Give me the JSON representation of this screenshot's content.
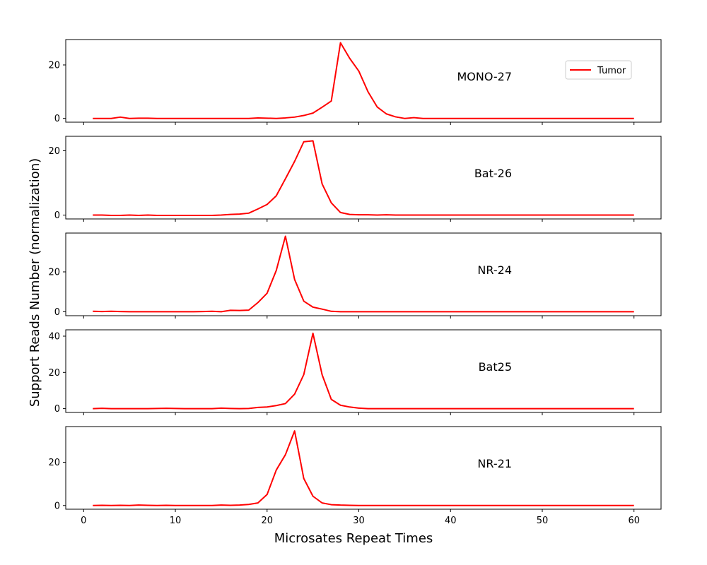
{
  "chart_data": {
    "type": "line",
    "xlabel": "Microsates Repeat Times",
    "ylabel": "Support Reads Number (normalization)",
    "xlim": [
      -1.95,
      62.95
    ],
    "xticks": [
      0,
      10,
      20,
      30,
      40,
      50,
      60
    ],
    "legend": {
      "placement": "top-right",
      "entries": [
        "Tumor"
      ]
    },
    "series_color": "#ff0000",
    "x": [
      1,
      2,
      3,
      4,
      5,
      6,
      7,
      8,
      9,
      10,
      11,
      12,
      13,
      14,
      15,
      16,
      17,
      18,
      19,
      20,
      21,
      22,
      23,
      24,
      25,
      26,
      27,
      28,
      29,
      30,
      31,
      32,
      33,
      34,
      35,
      36,
      37,
      38,
      39,
      40,
      41,
      42,
      43,
      44,
      45,
      46,
      47,
      48,
      49,
      50,
      51,
      52,
      53,
      54,
      55,
      56,
      57,
      58,
      59,
      60
    ],
    "panels": [
      {
        "label": "MONO-27",
        "ylim": [
          -1.4,
          29.5
        ],
        "yticks": [
          0,
          20
        ],
        "series": [
          {
            "name": "Tumor",
            "values": [
              0,
              0,
              0,
              0.5,
              0,
              0.1,
              0.1,
              0,
              0,
              0,
              0,
              0,
              0,
              0,
              0,
              0,
              0,
              0,
              0.2,
              0.1,
              0,
              0.2,
              0.5,
              1.1,
              2,
              4.2,
              6.5,
              28.3,
              22.5,
              17.7,
              10,
              4.3,
              1.7,
              0.6,
              0,
              0.3,
              0,
              0,
              0,
              0,
              0,
              0,
              0,
              0,
              0,
              0,
              0,
              0,
              0,
              0,
              0,
              0,
              0,
              0,
              0,
              0,
              0,
              0,
              0,
              0
            ]
          }
        ]
      },
      {
        "label": "Bat-26",
        "ylim": [
          -1.2,
          24.5
        ],
        "yticks": [
          0,
          20
        ],
        "series": [
          {
            "name": "Tumor",
            "values": [
              0,
              0,
              -0.1,
              -0.1,
              0,
              -0.1,
              0,
              -0.1,
              -0.1,
              -0.1,
              -0.1,
              -0.1,
              -0.1,
              -0.1,
              0,
              0.2,
              0.3,
              0.6,
              1.9,
              3.3,
              6,
              11.3,
              16.7,
              22.8,
              23.1,
              9.7,
              3.8,
              0.8,
              0.2,
              0.1,
              0.1,
              0,
              0.1,
              0,
              0,
              0,
              0,
              0,
              0,
              0,
              0,
              0,
              0,
              0,
              0,
              0,
              0,
              0,
              0,
              0,
              0,
              0,
              0,
              0,
              0,
              0,
              0,
              0,
              0,
              0
            ]
          }
        ]
      },
      {
        "label": "NR-24",
        "ylim": [
          -2,
          39.5
        ],
        "yticks": [
          0,
          20
        ],
        "series": [
          {
            "name": "Tumor",
            "values": [
              0.2,
              0.1,
              0.2,
              0.1,
              0,
              0,
              0,
              0,
              0,
              0,
              0,
              0,
              0.1,
              0.2,
              0,
              0.7,
              0.6,
              0.8,
              4.6,
              9.3,
              20.7,
              37.9,
              16.2,
              5.3,
              2.3,
              1.3,
              0.2,
              0,
              0,
              0,
              0,
              0,
              0,
              0,
              0,
              0,
              0,
              0,
              0,
              0,
              0,
              0,
              0,
              0,
              0,
              0,
              0,
              0,
              0,
              0,
              0,
              0,
              0,
              0,
              0,
              0,
              0,
              0,
              0,
              0
            ]
          }
        ]
      },
      {
        "label": "Bat25",
        "ylim": [
          -2.1,
          43.5
        ],
        "yticks": [
          0,
          20,
          40
        ],
        "series": [
          {
            "name": "Tumor",
            "values": [
              0,
              0.2,
              0,
              0,
              0,
              0,
              0,
              0.1,
              0.2,
              0.1,
              0,
              0,
              0,
              0,
              0.3,
              0.1,
              0,
              0.1,
              0.7,
              0.9,
              1.7,
              2.8,
              8,
              18.8,
              41.6,
              18.7,
              5.1,
              1.9,
              0.9,
              0.3,
              0,
              0,
              0,
              0,
              0,
              0,
              0,
              0,
              0,
              0,
              0,
              0,
              0,
              0,
              0,
              0,
              0,
              0,
              0,
              0,
              0,
              0,
              0,
              0,
              0,
              0,
              0,
              0,
              0,
              0
            ]
          }
        ]
      },
      {
        "label": "NR-21",
        "ylim": [
          -1.7,
          36.5
        ],
        "yticks": [
          0,
          20
        ],
        "series": [
          {
            "name": "Tumor",
            "values": [
              0,
              0.1,
              0,
              0.1,
              0,
              0.2,
              0.1,
              0,
              0.1,
              0,
              0,
              0,
              0,
              0,
              0.2,
              0.1,
              0.2,
              0.5,
              1.2,
              5.1,
              16.4,
              23.5,
              34.5,
              12.5,
              4.3,
              1.2,
              0.4,
              0.2,
              0.1,
              0,
              0,
              0,
              0,
              0,
              0,
              0,
              0,
              0,
              0,
              0,
              0,
              0,
              0,
              0,
              0,
              0,
              0,
              0,
              0,
              0,
              0,
              0,
              0,
              0,
              0,
              0,
              0,
              0,
              0,
              0
            ]
          }
        ]
      }
    ]
  }
}
